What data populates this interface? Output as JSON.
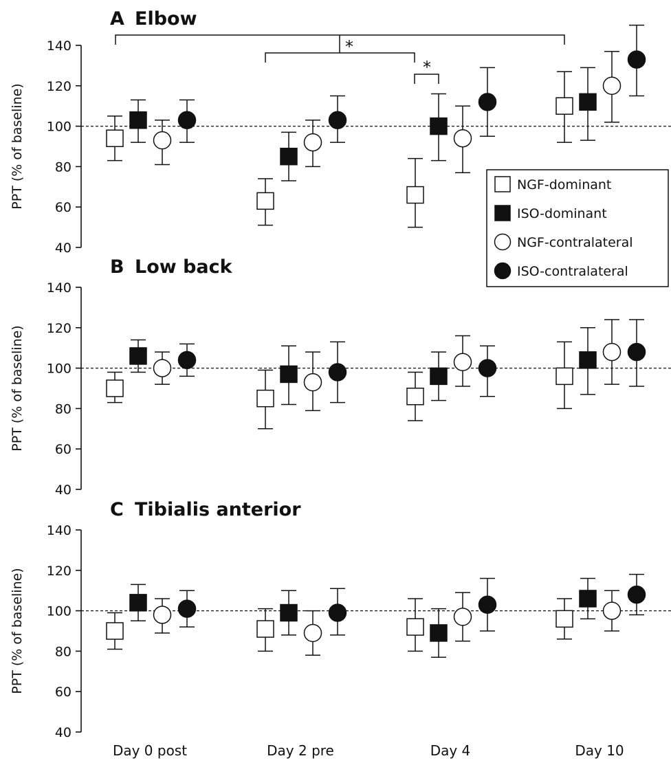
{
  "chart_data": [
    {
      "panel": "A",
      "title": "Elbow",
      "type": "scatter",
      "ylabel": "PPT (% of baseline)",
      "ylim": [
        40,
        140
      ],
      "yticks": [
        40,
        60,
        80,
        100,
        120,
        140
      ],
      "categories": [
        "Day 0 post",
        "Day 2 pre",
        "Day 4",
        "Day 10"
      ],
      "reference_line": 100,
      "series": [
        {
          "name": "NGF-dominant",
          "values": [
            94,
            63,
            66,
            110
          ],
          "error_low": [
            83,
            51,
            50,
            92
          ],
          "error_high": [
            105,
            74,
            84,
            127
          ]
        },
        {
          "name": "ISO-dominant",
          "values": [
            103,
            85,
            100,
            112
          ],
          "error_low": [
            92,
            73,
            83,
            93
          ],
          "error_high": [
            113,
            97,
            116,
            129
          ]
        },
        {
          "name": "NGF-contralateral",
          "values": [
            93,
            92,
            94,
            120
          ],
          "error_low": [
            81,
            80,
            77,
            102
          ],
          "error_high": [
            103,
            103,
            110,
            137
          ]
        },
        {
          "name": "ISO-contralateral",
          "values": [
            103,
            103,
            112,
            133
          ],
          "error_low": [
            92,
            92,
            95,
            115
          ],
          "error_high": [
            113,
            115,
            129,
            150
          ]
        }
      ],
      "annotations": [
        {
          "text": "*",
          "type": "bracket",
          "from": "Day 0 post",
          "to": "Day 10"
        },
        {
          "text": "*",
          "type": "bracket",
          "from": "Day 2 pre",
          "to": "Day 4"
        },
        {
          "text": "*",
          "type": "bracket",
          "from": "Day 4 NGF-dominant",
          "to": "Day 4 ISO-dominant"
        }
      ]
    },
    {
      "panel": "B",
      "title": "Low back",
      "type": "scatter",
      "ylabel": "PPT (% of baseline)",
      "ylim": [
        40,
        140
      ],
      "yticks": [
        40,
        60,
        80,
        100,
        120,
        140
      ],
      "categories": [
        "Day 0 post",
        "Day 2 pre",
        "Day 4",
        "Day 10"
      ],
      "reference_line": 100,
      "series": [
        {
          "name": "NGF-dominant",
          "values": [
            90,
            85,
            86,
            96
          ],
          "error_low": [
            83,
            70,
            74,
            80
          ],
          "error_high": [
            98,
            99,
            98,
            113
          ]
        },
        {
          "name": "ISO-dominant",
          "values": [
            106,
            97,
            96,
            104
          ],
          "error_low": [
            98,
            82,
            84,
            87
          ],
          "error_high": [
            114,
            111,
            108,
            120
          ]
        },
        {
          "name": "NGF-contralateral",
          "values": [
            100,
            93,
            103,
            108
          ],
          "error_low": [
            92,
            79,
            91,
            92
          ],
          "error_high": [
            108,
            108,
            116,
            124
          ]
        },
        {
          "name": "ISO-contralateral",
          "values": [
            104,
            98,
            100,
            108
          ],
          "error_low": [
            96,
            83,
            86,
            91
          ],
          "error_high": [
            112,
            113,
            111,
            124
          ]
        }
      ]
    },
    {
      "panel": "C",
      "title": "Tibialis anterior",
      "type": "scatter",
      "ylabel": "PPT (% of baseline)",
      "ylim": [
        40,
        140
      ],
      "yticks": [
        40,
        60,
        80,
        100,
        120,
        140
      ],
      "categories": [
        "Day 0 post",
        "Day 2 pre",
        "Day 4",
        "Day 10"
      ],
      "reference_line": 100,
      "series": [
        {
          "name": "NGF-dominant",
          "values": [
            90,
            91,
            92,
            96
          ],
          "error_low": [
            81,
            80,
            80,
            86
          ],
          "error_high": [
            99,
            101,
            106,
            106
          ]
        },
        {
          "name": "ISO-dominant",
          "values": [
            104,
            99,
            89,
            106
          ],
          "error_low": [
            95,
            88,
            77,
            96
          ],
          "error_high": [
            113,
            110,
            101,
            116
          ]
        },
        {
          "name": "NGF-contralateral",
          "values": [
            98,
            89,
            97,
            100
          ],
          "error_low": [
            89,
            78,
            85,
            90
          ],
          "error_high": [
            106,
            100,
            109,
            110
          ]
        },
        {
          "name": "ISO-contralateral",
          "values": [
            101,
            99,
            103,
            108
          ],
          "error_low": [
            92,
            88,
            90,
            98
          ],
          "error_high": [
            110,
            111,
            116,
            118
          ]
        }
      ]
    }
  ],
  "legend": {
    "position": "right, between panels A and B",
    "entries": [
      {
        "label": "NGF-dominant",
        "marker": "open-square"
      },
      {
        "label": "ISO-dominant",
        "marker": "filled-square"
      },
      {
        "label": "NGF-contralateral",
        "marker": "open-circle"
      },
      {
        "label": "ISO-contralateral",
        "marker": "filled-circle"
      }
    ]
  },
  "colors": {
    "ink": "#111111",
    "background": "#ffffff"
  }
}
